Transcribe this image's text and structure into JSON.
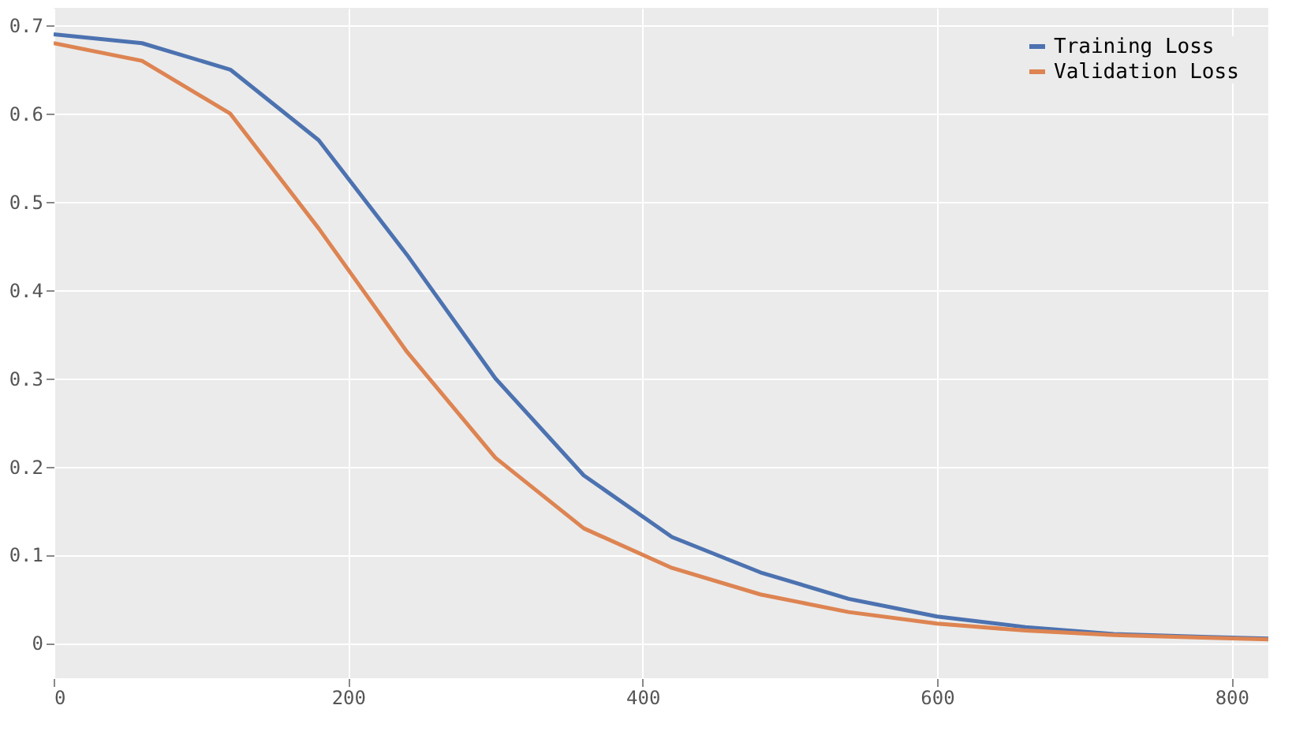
{
  "chart_data": {
    "type": "line",
    "x": [
      0,
      60,
      120,
      180,
      240,
      300,
      360,
      420,
      480,
      540,
      600,
      660,
      720,
      780,
      825
    ],
    "series": [
      {
        "name": "Training Loss",
        "color": "#4c72b0",
        "values": [
          0.69,
          0.68,
          0.65,
          0.57,
          0.44,
          0.3,
          0.19,
          0.12,
          0.08,
          0.05,
          0.03,
          0.018,
          0.01,
          0.007,
          0.005
        ]
      },
      {
        "name": "Validation Loss",
        "color": "#dd8452",
        "values": [
          0.68,
          0.66,
          0.6,
          0.47,
          0.33,
          0.21,
          0.13,
          0.085,
          0.055,
          0.035,
          0.022,
          0.014,
          0.009,
          0.006,
          0.004
        ]
      }
    ],
    "xlim": [
      0,
      825
    ],
    "xticks": [
      0,
      200,
      400,
      600,
      800
    ],
    "ylim": [
      -0.04,
      0.72
    ],
    "yticks": [
      0,
      0.1,
      0.2,
      0.3,
      0.4,
      0.5,
      0.6,
      0.7
    ],
    "grid": true,
    "legend": "top right",
    "marker": "none",
    "line_style": "solid"
  }
}
